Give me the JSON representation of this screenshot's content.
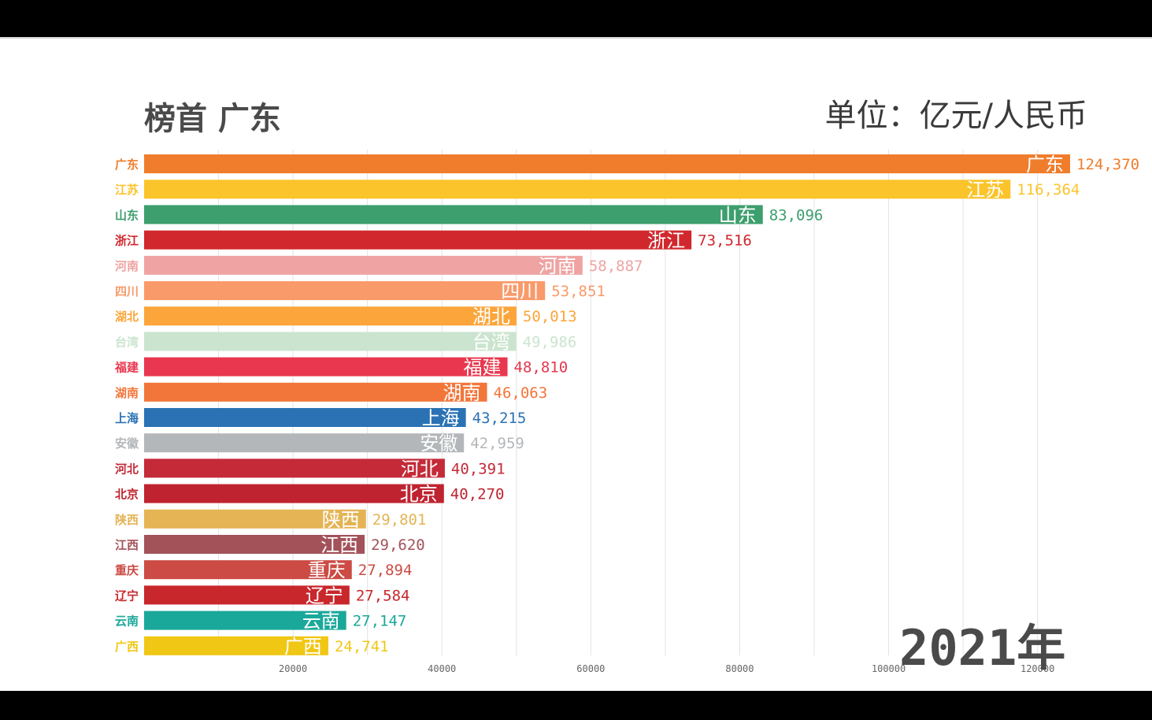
{
  "header": {
    "title": "榜首 广东",
    "unit": "单位：亿元/人民币"
  },
  "period_label": "2021年",
  "chart_data": {
    "type": "bar",
    "orientation": "horizontal",
    "title": "榜首 广东",
    "xlabel": "",
    "ylabel": "",
    "xlim": [
      0,
      124370
    ],
    "x_ticks": [
      20000,
      40000,
      60000,
      80000,
      100000,
      120000
    ],
    "grid": true,
    "categories": [
      "广东",
      "江苏",
      "山东",
      "浙江",
      "河南",
      "四川",
      "湖北",
      "台湾",
      "福建",
      "湖南",
      "上海",
      "安徽",
      "河北",
      "北京",
      "陕西",
      "江西",
      "重庆",
      "辽宁",
      "云南",
      "广西"
    ],
    "values": [
      124370,
      116364,
      83096,
      73516,
      58887,
      53851,
      50013,
      49986,
      48810,
      46063,
      43215,
      42959,
      40391,
      40270,
      29801,
      29620,
      27894,
      27584,
      27147,
      24741
    ],
    "value_labels": [
      "124,370",
      "116,364",
      "83,096",
      "73,516",
      "58,887",
      "53,851",
      "50,013",
      "49,986",
      "48,810",
      "46,063",
      "43,215",
      "42,959",
      "40,391",
      "40,270",
      "29,801",
      "29,620",
      "27,894",
      "27,584",
      "27,147",
      "24,741"
    ],
    "colors": [
      "#f07d2c",
      "#fbc42b",
      "#3d9e6e",
      "#d1282d",
      "#efa3a3",
      "#f99a6a",
      "#fba53a",
      "#cbe4cf",
      "#e8374e",
      "#f2763a",
      "#2a72b4",
      "#b4b7ba",
      "#c42a38",
      "#bf2330",
      "#e4b455",
      "#a3525a",
      "#cc4b44",
      "#c8272c",
      "#1aa89a",
      "#f0c714"
    ]
  }
}
